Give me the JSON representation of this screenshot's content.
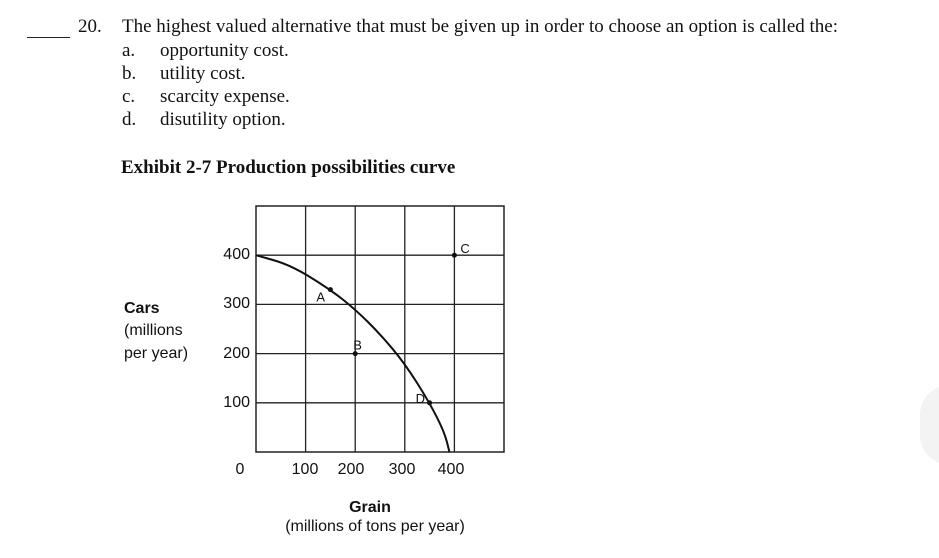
{
  "question": {
    "number": "20.",
    "text": "The highest valued alternative that must be given up in order to choose an option is called the:",
    "options": [
      {
        "letter": "a.",
        "text": "opportunity cost."
      },
      {
        "letter": "b.",
        "text": "utility cost."
      },
      {
        "letter": "c.",
        "text": "scarcity expense."
      },
      {
        "letter": "d.",
        "text": "disutility option."
      }
    ]
  },
  "exhibit_title": "Exhibit 2-7 Production possibilities curve",
  "chart_data": {
    "type": "line",
    "ylabel_lines": [
      "Cars",
      "(millions",
      "per year)"
    ],
    "xlabel_lines": [
      "Grain",
      "(millions of tons per year)"
    ],
    "y_ticks": [
      "400",
      "300",
      "200",
      "100"
    ],
    "origin_label": "0",
    "x_ticks": [
      "100",
      "200",
      "300",
      "400"
    ],
    "xlim": [
      0,
      500
    ],
    "ylim": [
      0,
      500
    ],
    "grid": true,
    "curve": {
      "x": [
        0,
        70,
        150,
        200,
        250,
        300,
        350,
        380,
        390
      ],
      "y": [
        400,
        380,
        330,
        290,
        240,
        180,
        100,
        40,
        0
      ]
    },
    "points": [
      {
        "label": "A",
        "x": 150,
        "y": 330
      },
      {
        "label": "B",
        "x": 200,
        "y": 200
      },
      {
        "label": "C",
        "x": 400,
        "y": 400
      },
      {
        "label": "D",
        "x": 350,
        "y": 100
      }
    ]
  }
}
